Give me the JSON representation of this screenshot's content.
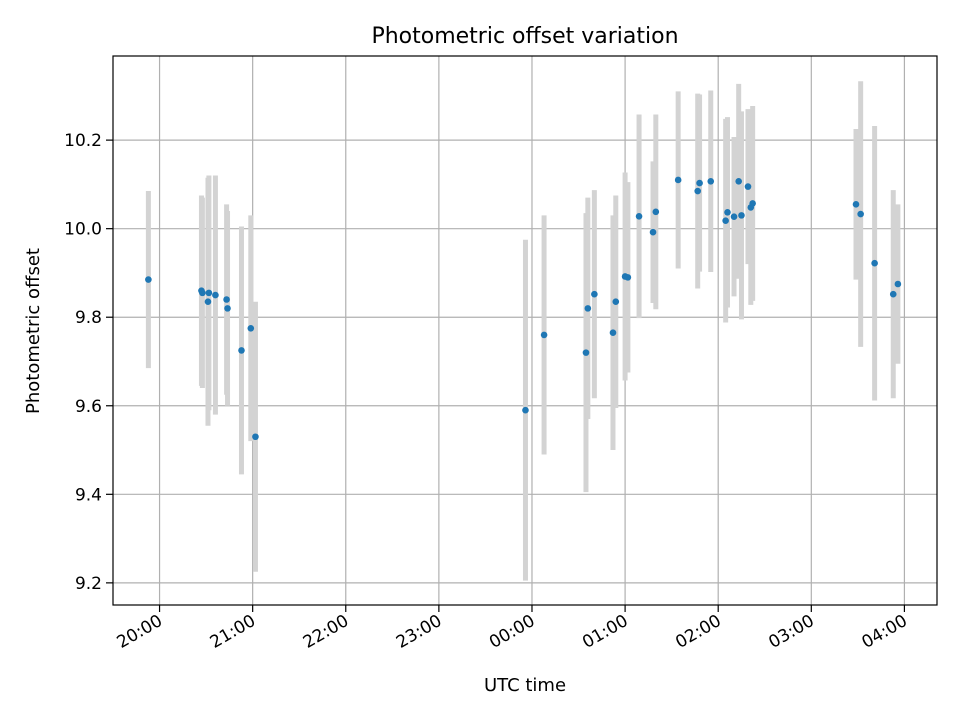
{
  "chart_data": {
    "type": "scatter",
    "title": "Photometric offset variation",
    "xlabel": "UTC time",
    "ylabel": "Photometric offset",
    "x_tick_labels": [
      "20:00",
      "21:00",
      "22:00",
      "23:00",
      "00:00",
      "01:00",
      "02:00",
      "03:00",
      "04:00"
    ],
    "y_ticks": [
      9.2,
      9.4,
      9.6,
      9.8,
      10.0,
      10.2
    ],
    "y_tick_labels": [
      "9.2",
      "9.4",
      "9.6",
      "9.8",
      "10.0",
      "10.2"
    ],
    "xlim_hours": [
      19.5,
      28.35
    ],
    "ylim": [
      9.15,
      10.39
    ],
    "grid": true,
    "colors": {
      "point": "#1f77b4",
      "errorbar": "#d3d3d3",
      "grid": "#b0b0b0"
    },
    "series": [
      {
        "x": [
          19.88,
          20.45,
          20.46,
          20.52,
          20.53,
          20.6,
          20.72,
          20.73,
          20.88,
          20.98,
          21.03,
          23.93,
          24.13,
          24.58,
          24.6,
          24.67,
          24.87,
          24.9,
          25.0,
          25.03,
          25.15,
          25.3,
          25.33,
          25.57,
          25.78,
          25.8,
          25.92,
          26.08,
          26.1,
          26.17,
          26.22,
          26.25,
          26.32,
          26.35,
          26.37,
          27.48,
          27.53,
          27.68,
          27.88,
          27.93
        ],
        "y": [
          9.885,
          9.86,
          9.855,
          9.835,
          9.855,
          9.85,
          9.84,
          9.82,
          9.725,
          9.775,
          9.53,
          9.59,
          9.76,
          9.72,
          9.82,
          9.852,
          9.765,
          9.835,
          9.892,
          9.89,
          10.028,
          9.992,
          10.038,
          10.11,
          10.085,
          10.103,
          10.107,
          10.018,
          10.037,
          10.027,
          10.107,
          10.03,
          10.095,
          10.048,
          10.057,
          10.055,
          10.033,
          9.922,
          9.852,
          9.875
        ],
        "err": [
          0.2,
          0.215,
          0.215,
          0.28,
          0.265,
          0.27,
          0.215,
          0.22,
          0.28,
          0.255,
          0.305,
          0.385,
          0.27,
          0.315,
          0.25,
          0.235,
          0.265,
          0.24,
          0.235,
          0.215,
          0.23,
          0.16,
          0.22,
          0.2,
          0.22,
          0.2,
          0.205,
          0.23,
          0.215,
          0.18,
          0.22,
          0.235,
          0.175,
          0.22,
          0.22,
          0.17,
          0.3,
          0.31,
          0.235,
          0.18
        ]
      }
    ]
  }
}
